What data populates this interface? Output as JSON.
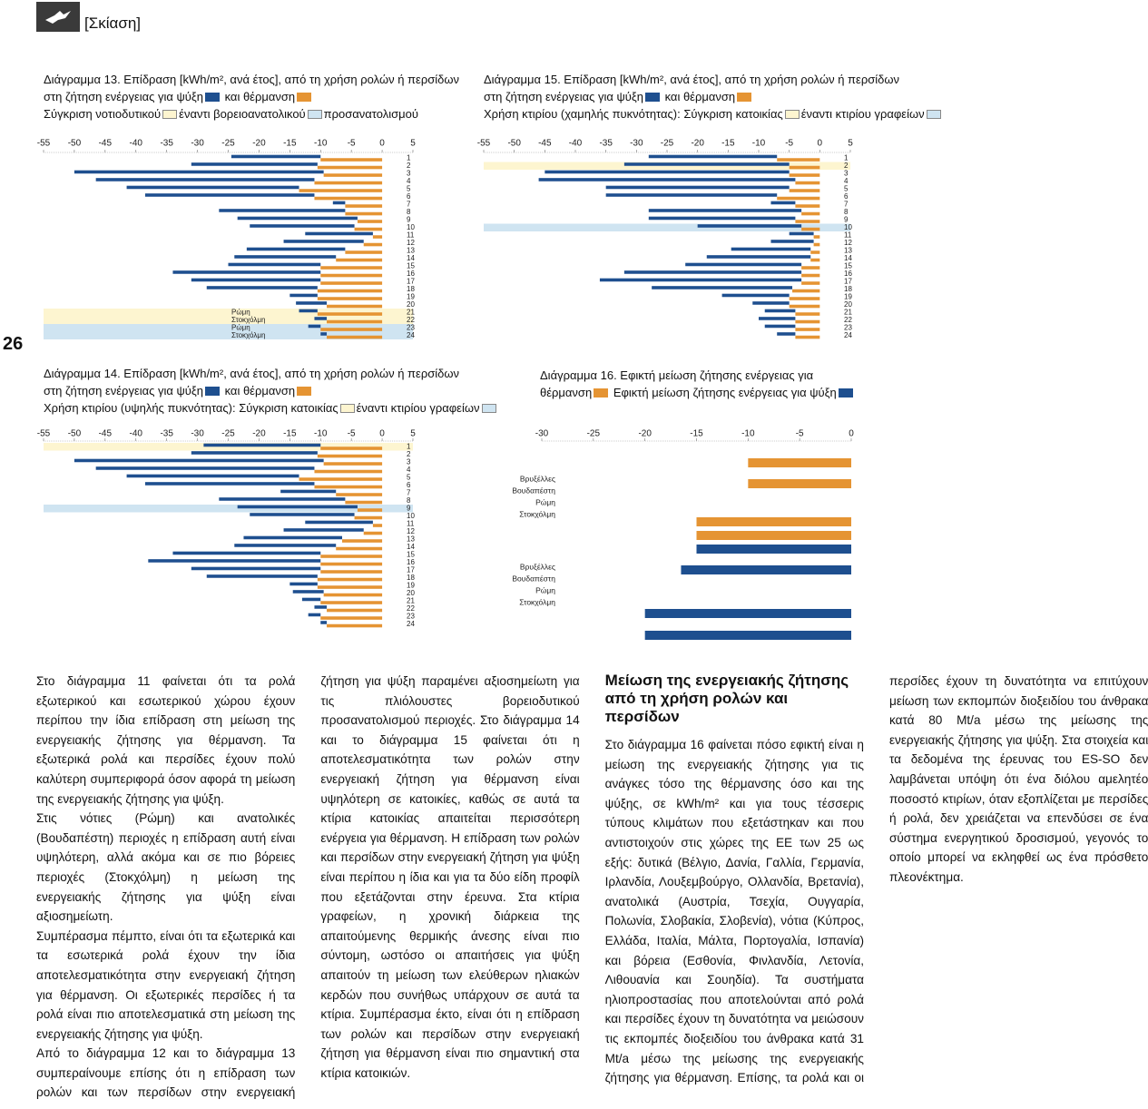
{
  "header": {
    "section": "[Σκίαση]"
  },
  "page_number": "26",
  "chart_data": [
    {
      "type": "bar",
      "orientation": "horizontal",
      "stacked": true,
      "title": "Διάγραμμα 13. Επίδραση [kWh/m², ανά έτος], από τη χρήση ρολών ή περσίδων",
      "comparison": [
        {
          "text": "Σύγκριση νοτιοδυτικού",
          "color": "#fdf5d0"
        },
        {
          "text": "έναντι βορειοανατολικού",
          "color": "#cfe4f1"
        },
        {
          "text": "προσανατολισμού"
        }
      ],
      "categories": [
        1,
        2,
        3,
        4,
        5,
        6,
        7,
        8,
        9,
        10,
        11,
        12,
        13,
        14,
        15,
        16,
        17,
        18,
        19,
        20,
        21,
        22,
        23,
        24
      ],
      "labels": [
        null,
        null,
        null,
        null,
        null,
        null,
        null,
        null,
        null,
        null,
        null,
        null,
        null,
        null,
        null,
        null,
        null,
        null,
        null,
        null,
        "Ρώμη",
        "Στοκχόλμη",
        "Ρώμη",
        "Στοκχόλμη"
      ],
      "series": [
        {
          "name": "στη ζήτηση ενέργειας για ψύξη",
          "color": "#1e4f8f",
          "values": [
            -14.5,
            -20.5,
            -40.5,
            -35.5,
            -28,
            -27.5,
            -2,
            -20.5,
            -19.5,
            -17,
            -11,
            -13,
            -16,
            -16.5,
            -15,
            -24,
            -21,
            -18,
            -4.5,
            -5,
            -3,
            -2,
            -2,
            -1
          ]
        },
        {
          "name": "και θέρμανση",
          "color": "#e59433",
          "values": [
            -10,
            -10.5,
            -9.5,
            -11,
            -13.5,
            -11,
            -6,
            -6,
            -4,
            -4.5,
            -1.5,
            -3,
            -6,
            -7.5,
            -10,
            -10,
            -10,
            -10.5,
            -10.5,
            -9,
            -10.5,
            -9,
            -10,
            -9
          ]
        }
      ],
      "xlim": [
        -55,
        5
      ],
      "xticks": [
        -55,
        -50,
        -45,
        -40,
        -35,
        -30,
        -25,
        -20,
        -15,
        -10,
        -5,
        0,
        5
      ]
    },
    {
      "type": "bar",
      "orientation": "horizontal",
      "stacked": true,
      "title": "Διάγραμμα 14. Επίδραση [kWh/m², ανά έτος], από τη χρήση ρολών ή περσίδων",
      "comparison": [
        {
          "text": "Χρήση κτιρίου (υψηλής πυκνότητας): Σύγκριση κατοικίας",
          "color": "#fdf5d0"
        },
        {
          "text": "έναντι κτιρίου γραφείων",
          "color": "#cfe4f1"
        }
      ],
      "categories": [
        1,
        2,
        3,
        4,
        5,
        6,
        7,
        8,
        9,
        10,
        11,
        12,
        13,
        14,
        15,
        16,
        17,
        18,
        19,
        20,
        21,
        22,
        23,
        24
      ],
      "series": [
        {
          "name": "στη ζήτηση ενέργειας για ψύξη",
          "color": "#1e4f8f",
          "values": [
            -19,
            -20.5,
            -40.5,
            -35.5,
            -28,
            -27.5,
            -9,
            -20.5,
            -19.5,
            -17,
            -11,
            -13,
            -16,
            -16.5,
            -24,
            -28,
            -21,
            -18,
            -4.5,
            -5,
            -3,
            -2,
            -2,
            -1
          ]
        },
        {
          "name": "και θέρμανση",
          "color": "#e59433",
          "values": [
            -10,
            -10.5,
            -9.5,
            -11,
            -13.5,
            -11,
            -7.5,
            -6,
            -4,
            -4.5,
            -1.5,
            -3,
            -6.5,
            -7.5,
            -10,
            -10,
            -10,
            -10.5,
            -10.5,
            -9.5,
            -10,
            -9,
            -10,
            -9
          ]
        }
      ],
      "xlim": [
        -55,
        5
      ],
      "xticks": [
        -55,
        -50,
        -45,
        -40,
        -35,
        -30,
        -25,
        -20,
        -15,
        -10,
        -5,
        0,
        5
      ]
    },
    {
      "type": "bar",
      "orientation": "horizontal",
      "stacked": true,
      "title": "Διάγραμμα 15. Επίδραση [kWh/m², ανά έτος], από τη χρήση ρολών ή περσίδων",
      "comparison": [
        {
          "text": "Χρήση κτιρίου (χαμηλής πυκνότητας): Σύγκριση κατοικίας",
          "color": "#fdf5d0"
        },
        {
          "text": "έναντι κτιρίου γραφείων",
          "color": "#cfe4f1"
        }
      ],
      "categories": [
        1,
        2,
        3,
        4,
        5,
        6,
        7,
        8,
        9,
        10,
        11,
        12,
        13,
        14,
        15,
        16,
        17,
        18,
        19,
        20,
        21,
        22,
        23,
        24
      ],
      "series": [
        {
          "name": "στη ζήτηση ενέργειας για ψύξη",
          "color": "#1e4f8f",
          "values": [
            -21,
            -27,
            -40,
            -42,
            -30,
            -28,
            -4,
            -25,
            -24,
            -17,
            -4,
            -7,
            -13,
            -17,
            -19,
            -29,
            -33,
            -23,
            -11,
            -6,
            -5,
            -6,
            -5,
            -3
          ]
        },
        {
          "name": "και θέρμανση",
          "color": "#e59433",
          "values": [
            -7,
            -5,
            -5,
            -4,
            -5,
            -7,
            -4,
            -3,
            -4,
            -3,
            -1,
            -1,
            -1.5,
            -1.5,
            -3,
            -3,
            -3,
            -4.5,
            -5,
            -5,
            -4,
            -4,
            -4,
            -4
          ]
        }
      ],
      "xlim": [
        -55,
        5
      ],
      "xticks": [
        -55,
        -50,
        -45,
        -40,
        -35,
        -30,
        -25,
        -20,
        -15,
        -10,
        -5,
        0,
        5
      ]
    },
    {
      "type": "bar",
      "orientation": "horizontal",
      "stacked": false,
      "title": "Διάγραμμα 16. Εφικτή μείωση ζήτησης ενέργειας για",
      "categories": [
        "Βρυξέλλες",
        "Βουδαπέστη",
        "Ρώμη",
        "Στοκχόλμη",
        "Βρυξέλλες",
        "Βουδαπέστη",
        "Ρώμη",
        "Στοκχόλμη"
      ],
      "series": [
        {
          "name": "θέρμανση",
          "color": "#e59433",
          "values": [
            -10,
            -10,
            -15,
            -15,
            null,
            null,
            null,
            null
          ]
        },
        {
          "name": "Εφικτή μείωση ζήτησης ενέργειας για ψύξη",
          "color": "#1e4f8f",
          "values": [
            null,
            null,
            null,
            null,
            -15,
            -16.5,
            -20,
            -20
          ]
        }
      ],
      "xlim": [
        -30,
        0
      ],
      "xticks": [
        -30,
        -25,
        -20,
        -15,
        -10,
        -5,
        0
      ]
    }
  ],
  "body": {
    "paragraphs": [
      "Στο διάγραμμα 11 φαίνεται ότι τα ρολά εξωτερικού και εσωτερικού χώρου έχουν περίπου την ίδια επίδραση στη μείωση της ενεργειακής ζήτησης για θέρμανση. Τα εξωτερικά ρολά και περσίδες έχουν πολύ καλύτερη συμπεριφορά όσον αφορά τη μείωση της ενεργειακής ζήτησης για ψύξη.",
      "Στις νότιες (Ρώμη) και ανατολικές (Βουδαπέστη) περιοχές η επίδραση αυτή είναι υψηλότερη, αλλά ακόμα και σε πιο βόρειες περιοχές (Στοκχόλμη) η μείωση της ενεργειακής ζήτησης για ψύξη είναι αξιοσημείωτη.",
      "Συμπέρασμα πέμπτο, είναι ότι τα εξωτερικά και τα εσωτερικά ρολά έχουν την ίδια αποτελεσματικότητα στην ενεργειακή ζήτηση για θέρμανση. Οι εξωτερικές περσίδες ή τα ρολά είναι πιο αποτελεσματικά στη μείωση της ενεργειακής ζήτησης για ψύξη.",
      "Από το διάγραμμα 12 και το διάγραμμα 13 συμπεραίνουμε επίσης ότι η επίδραση των ρολών και των περσίδων στην ενεργειακή ζήτηση για ψύξη παραμένει αξιοσημείωτη για τις πλιόλουστες βορειοδυτικού προσανατολισμού περιοχές. Στο διάγραμμα 14 και το διάγραμμα 15 φαίνεται ότι η αποτελεσματικότητα των ρολών στην ενεργειακή ζήτηση για θέρμανση είναι υψηλότερη σε κατοικίες, καθώς σε αυτά τα κτίρια κατοικίας απαιτείται περισσότερη ενέργεια για θέρμανση. Η επίδραση των ρολών και περσίδων στην ενεργειακή ζήτηση για ψύξη είναι περίπου η ίδια και για τα δύο είδη προφίλ που εξετάζονται στην έρευνα. Στα κτίρια γραφείων, η χρονική διάρκεια της απαιτούμενης θερμικής άνεσης είναι πιο σύντομη, ωστόσο οι απαιτήσεις για ψύξη απαιτούν τη μείωση των ελεύθερων ηλιακών κερδών που συνήθως υπάρχουν σε αυτά τα κτίρια. Συμπέρασμα έκτο, είναι ότι η επίδραση των ρολών και περσίδων στην ενεργειακή ζήτηση για θέρμανση είναι πιο σημαντική στα κτίρια κατοικιών."
    ],
    "heading": "Μείωση της ενεργειακής ζήτησης από τη χρήση ρολών και περσίδων",
    "closing": "Στο διάγραμμα 16 φαίνεται πόσο εφικτή είναι η μείωση της ενεργειακής ζήτησης για τις ανάγκες τόσο της θέρμανσης όσο και της ψύξης, σε kWh/m² και για τους τέσσερις τύπους κλιμάτων που εξετάστηκαν και που αντιστοιχούν στις χώρες της ΕΕ των 25 ως εξής: δυτικά (Βέλγιο, Δανία, Γαλλία, Γερμανία, Ιρλανδία, Λουξεμβούργο, Ολλανδία, Βρετανία), ανατολικά (Αυστρία, Τσεχία, Ουγγαρία, Πολωνία, Σλοβακία, Σλοβενία), νότια (Κύπρος, Ελλάδα, Ιταλία, Μάλτα, Πορτογαλία, Ισπανία) και βόρεια (Εσθονία, Φινλανδία, Λετονία, Λιθουανία και Σουηδία). Τα συστήματα ηλιοπροστασίας που αποτελούνται από ρολά και περσίδες έχουν τη δυνατότητα να μειώσουν τις εκπομπές διοξειδίου του άνθρακα κατά 31 Mt/a μέσω της μείωσης της ενεργειακής ζήτησης για θέρμανση. Επίσης, τα ρολά και οι περσίδες έχουν τη δυνατότητα να επιτύχουν μείωση των εκπομπών διοξειδίου του άνθρακα κατά 80 Mt/a μέσω της μείωσης της ενεργειακής ζήτησης για ψύξη. Στα στοιχεία και τα δεδομένα της έρευνας του ES-SO δεν λαμβάνεται υπόψη ότι ένα διόλου αμελητέο ποσοστό κτιρίων, όταν εξοπλίζεται με περσίδες ή ρολά, δεν χρειάζεται να επενδύσει σε ένα σύστημα ενεργητικού δροσισμού, γεγονός το οποίο μπορεί να εκληφθεί ως ένα πρόσθετο πλεονέκτημα."
  }
}
